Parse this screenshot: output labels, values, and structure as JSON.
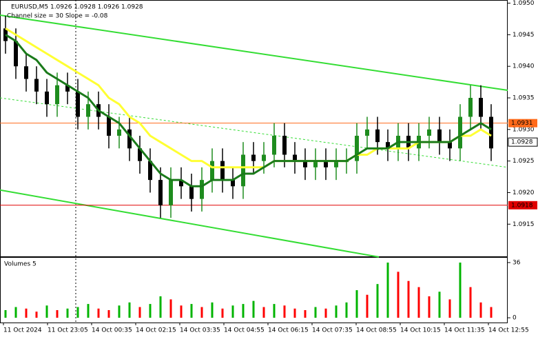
{
  "chart_data": {
    "type": "candlestick",
    "title": "EURUSD,M5  1.0926 1.0928 1.0926 1.0928",
    "subtitle": "Channel size = 30 Slope = -0.08",
    "open": [
      1.0946,
      1.0944,
      1.094,
      1.0938,
      1.0936,
      1.0934,
      1.0937,
      1.0936,
      1.0932,
      1.0934,
      1.0932,
      1.0929,
      1.093,
      1.0927,
      1.0925,
      1.0922,
      1.0918,
      1.0922,
      1.0921,
      1.0919,
      1.0922,
      1.0925,
      1.0922,
      1.0921,
      1.0926,
      1.0925,
      1.0926,
      1.0929,
      1.0926,
      1.0925,
      1.0924,
      1.0925,
      1.0924,
      1.0925,
      1.0925,
      1.0929,
      1.093,
      1.0928,
      1.0927,
      1.0929,
      1.0927,
      1.0929,
      1.093,
      1.0928,
      1.0927,
      1.0932,
      1.0935,
      1.0932
    ],
    "high": [
      1.0948,
      1.0946,
      1.0942,
      1.094,
      1.0938,
      1.0939,
      1.0939,
      1.0938,
      1.0936,
      1.0936,
      1.0934,
      1.0932,
      1.0932,
      1.0929,
      1.0927,
      1.0924,
      1.0924,
      1.0924,
      1.0923,
      1.0924,
      1.0927,
      1.0927,
      1.0924,
      1.0928,
      1.0928,
      1.0928,
      1.0931,
      1.0931,
      1.0928,
      1.0927,
      1.0927,
      1.0927,
      1.0927,
      1.0927,
      1.0931,
      1.0932,
      1.0932,
      1.093,
      1.0931,
      1.0931,
      1.0931,
      1.0932,
      1.0932,
      1.093,
      1.0934,
      1.0937,
      1.0937,
      1.0934
    ],
    "low": [
      1.0942,
      1.0938,
      1.0936,
      1.0934,
      1.0932,
      1.0932,
      1.0934,
      1.093,
      1.093,
      1.093,
      1.0927,
      1.0927,
      1.0925,
      1.0923,
      1.092,
      1.0916,
      1.0916,
      1.0919,
      1.0917,
      1.0917,
      1.092,
      1.092,
      1.0919,
      1.0919,
      1.0923,
      1.0923,
      1.0924,
      1.0924,
      1.0923,
      1.0922,
      1.0922,
      1.0922,
      1.0922,
      1.0923,
      1.0923,
      1.0927,
      1.0926,
      1.0925,
      1.0925,
      1.0925,
      1.0925,
      1.0927,
      1.0926,
      1.0925,
      1.0925,
      1.093,
      1.093,
      1.0925
    ],
    "close": [
      1.0944,
      1.094,
      1.0938,
      1.0936,
      1.0934,
      1.0937,
      1.0936,
      1.0932,
      1.0934,
      1.0932,
      1.0929,
      1.093,
      1.0927,
      1.0925,
      1.0922,
      1.0918,
      1.0922,
      1.0921,
      1.0919,
      1.0922,
      1.0925,
      1.0922,
      1.0921,
      1.0926,
      1.0925,
      1.0926,
      1.0929,
      1.0926,
      1.0925,
      1.0924,
      1.0925,
      1.0924,
      1.0925,
      1.0925,
      1.0929,
      1.093,
      1.0928,
      1.0927,
      1.0929,
      1.0927,
      1.0929,
      1.093,
      1.0928,
      1.0927,
      1.0932,
      1.0935,
      1.0932,
      1.0927
    ],
    "up_color": "#1e8c1e",
    "down_color": "#000000",
    "ylim": [
      1.09099,
      1.09505
    ],
    "yticks": [
      1.0915,
      {
        "value": 1.092,
        "label": "1.0920"
      },
      1.0925,
      {
        "value": 1.093,
        "label": "1.0930"
      },
      1.0935,
      {
        "value": 1.094,
        "label": "1.0940"
      },
      1.0945,
      {
        "value": 1.095,
        "label": "1.0950"
      }
    ],
    "moving_averages": [
      {
        "color": "#ffff33",
        "values": [
          1.0946,
          1.0945,
          1.0944,
          1.0943,
          1.0942,
          1.0941,
          1.094,
          1.0939,
          1.0938,
          1.0937,
          1.0935,
          1.0934,
          1.0932,
          1.0931,
          1.0929,
          1.0928,
          1.0927,
          1.0926,
          1.0925,
          1.0925,
          1.0924,
          1.0924,
          1.0924,
          1.0924,
          1.0924,
          1.0924,
          1.0925,
          1.0925,
          1.0925,
          1.0925,
          1.0925,
          1.0925,
          1.0925,
          1.0925,
          1.0926,
          1.0926,
          1.0927,
          1.0927,
          1.0927,
          1.0927,
          1.0928,
          1.0928,
          1.0928,
          1.0928,
          1.0929,
          1.0929,
          1.093,
          1.0929
        ]
      },
      {
        "color": "#1a7a1a",
        "values": [
          1.0945,
          1.0944,
          1.0942,
          1.0941,
          1.0939,
          1.0938,
          1.0937,
          1.0936,
          1.0935,
          1.0933,
          1.0932,
          1.0931,
          1.0929,
          1.0927,
          1.0925,
          1.0923,
          1.0922,
          1.0922,
          1.0921,
          1.0921,
          1.0922,
          1.0922,
          1.0922,
          1.0923,
          1.0923,
          1.0924,
          1.0925,
          1.0925,
          1.0925,
          1.0925,
          1.0925,
          1.0925,
          1.0925,
          1.0925,
          1.0926,
          1.0927,
          1.0927,
          1.0927,
          1.0928,
          1.0928,
          1.0928,
          1.0928,
          1.0928,
          1.0928,
          1.0929,
          1.093,
          1.0931,
          1.093
        ]
      }
    ],
    "channel": {
      "color": "#33dd33",
      "upper": [
        1.09481,
        1.09362
      ],
      "lower": [
        1.09204,
        1.09098
      ],
      "middle": [
        1.0935,
        1.0924
      ]
    },
    "levels": [
      {
        "value": 1.0931,
        "label": "1.0931",
        "color": "#ff6a1a",
        "line": true
      },
      {
        "value": 1.0928,
        "label": "1.0928",
        "color": "#ffffff",
        "line": false
      },
      {
        "value": 1.0918,
        "label": "1.0918",
        "color": "#e00000",
        "line": true
      }
    ],
    "time_labels": [
      "11 Oct 2024",
      "11 Oct 23:05",
      "14 Oct 00:35",
      "14 Oct 02:15",
      "14 Oct 03:35",
      "14 Oct 04:55",
      "14 Oct 06:15",
      "14 Oct 07:35",
      "14 Oct 08:55",
      "14 Oct 10:15",
      "14 Oct 11:35",
      "14 Oct 12:55"
    ],
    "volume": {
      "title": "Volumes 5",
      "values": [
        5,
        7,
        6,
        4,
        8,
        5,
        6,
        7,
        9,
        6,
        5,
        8,
        10,
        7,
        9,
        14,
        12,
        8,
        9,
        7,
        10,
        6,
        8,
        9,
        11,
        7,
        9,
        8,
        6,
        5,
        7,
        6,
        8,
        10,
        18,
        15,
        22,
        36,
        30,
        24,
        20,
        14,
        17,
        12,
        36,
        20,
        10,
        7
      ],
      "ylim": [
        -3.1,
        39.6
      ],
      "yticks": [
        0,
        36
      ],
      "up_color": "#00b400",
      "down_color": "#ff0000"
    }
  }
}
